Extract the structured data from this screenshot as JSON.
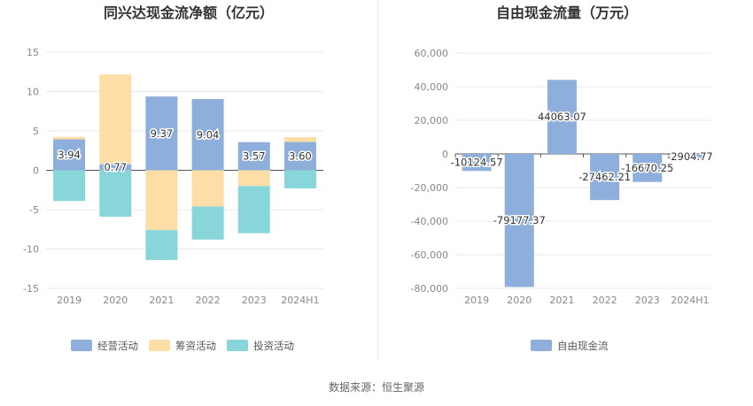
{
  "source": "数据来源：恒生聚源",
  "chart_data": [
    {
      "type": "bar",
      "stacked": true,
      "title": "同兴达现金流净额（亿元）",
      "categories": [
        "2019",
        "2020",
        "2021",
        "2022",
        "2023",
        "2024H1"
      ],
      "ylim": [
        -15,
        15
      ],
      "yticks": [
        15,
        10,
        5,
        0,
        -5,
        -10,
        -15
      ],
      "grid": true,
      "legend": "bottom",
      "series": [
        {
          "name": "经营活动",
          "color": "#8eaedb",
          "values": [
            3.94,
            0.77,
            9.37,
            9.04,
            3.57,
            3.6
          ],
          "labels": [
            "3.94",
            "0.77",
            "9.37",
            "9.04",
            "3.57",
            "3.60"
          ]
        },
        {
          "name": "筹资活动",
          "color": "#fedda6",
          "values": [
            0.3,
            11.4,
            -7.6,
            -4.6,
            -2.0,
            0.6
          ]
        },
        {
          "name": "投资活动",
          "color": "#88d6da",
          "values": [
            -3.9,
            -5.9,
            -3.8,
            -4.2,
            -6.0,
            -2.3
          ]
        }
      ]
    },
    {
      "type": "bar",
      "title": "自由现金流量（万元）",
      "categories": [
        "2019",
        "2020",
        "2021",
        "2022",
        "2023",
        "2024H1"
      ],
      "ylim": [
        -80000,
        60000
      ],
      "yticks": [
        60000,
        40000,
        20000,
        0,
        -20000,
        -40000,
        -60000,
        -80000
      ],
      "ytick_labels": [
        "60,000",
        "40,000",
        "20,000",
        "0",
        "-20,000",
        "-40,000",
        "-60,000",
        "-80,000"
      ],
      "grid": true,
      "legend": "bottom",
      "series": [
        {
          "name": "自由现金流",
          "color": "#8eaedb",
          "values": [
            -10124.57,
            -79177.37,
            44063.07,
            -27462.21,
            -16670.25,
            -2904.77
          ],
          "labels": [
            "-10124.57",
            "-79177.37",
            "44063.07",
            "-27462.21",
            "-16670.25",
            "-2904.77"
          ]
        }
      ]
    }
  ]
}
